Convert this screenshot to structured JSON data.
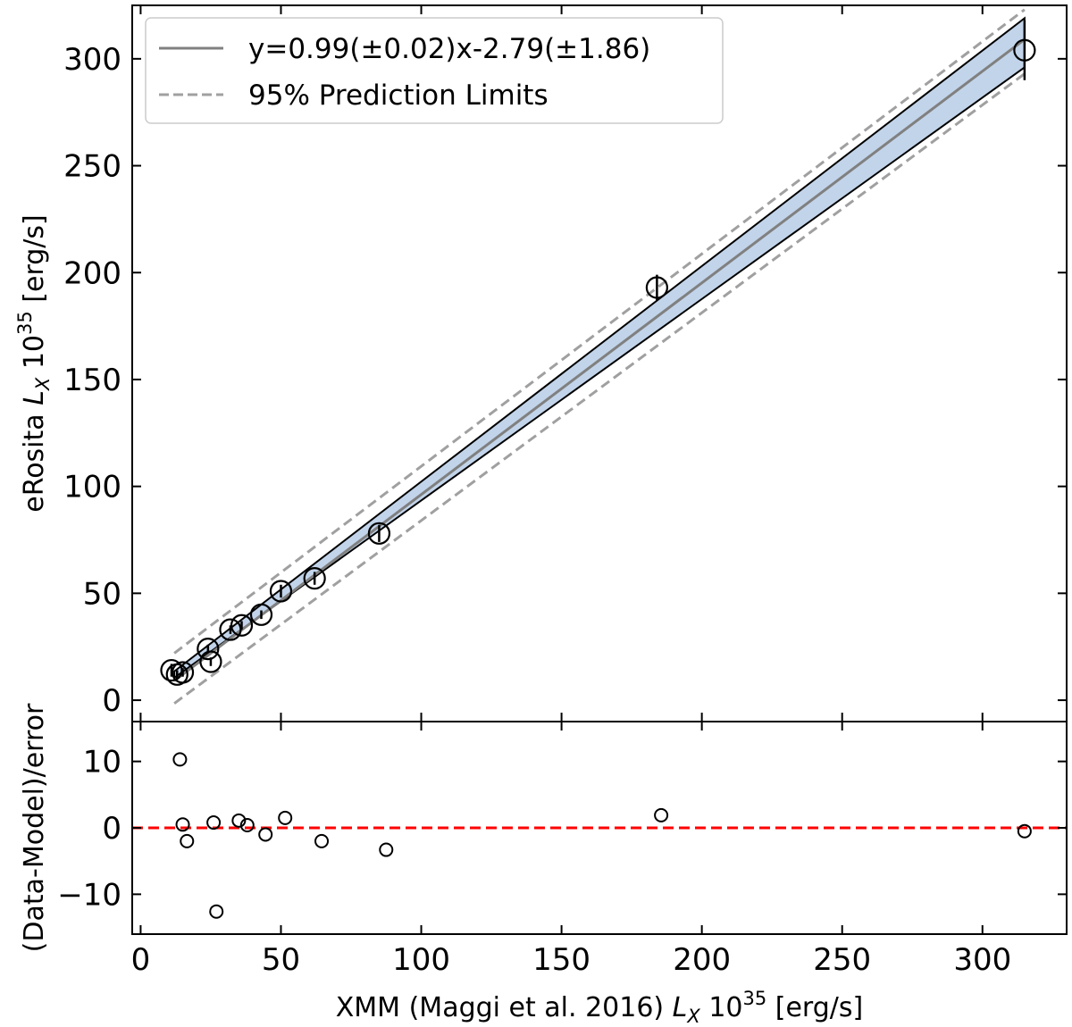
{
  "chart_data": [
    {
      "type": "scatter",
      "panel": "main",
      "ylabel": {
        "prefix": "eRosita ",
        "symbol": "L",
        "subscript": "X",
        "base": " 10",
        "exponent": "35",
        "unit": " [erg/s]"
      },
      "xlim": [
        -3,
        330
      ],
      "ylim": [
        -10,
        325
      ],
      "x_ticks": [
        0,
        50,
        100,
        150,
        200,
        250,
        300
      ],
      "y_ticks": [
        0,
        50,
        100,
        150,
        200,
        250,
        300
      ],
      "y_tick_labels": [
        "0",
        "50",
        "100",
        "150",
        "200",
        "250",
        "300"
      ],
      "grid": false,
      "legend": {
        "placement": "top-left",
        "entries": [
          {
            "label": "y=0.99(±0.02)x-2.79(±1.86)",
            "style": "solid",
            "color": "#808080"
          },
          {
            "label": "95% Prediction Limits",
            "style": "dashed",
            "color": "#a0a0a0"
          }
        ]
      },
      "fit": {
        "slope": 0.99,
        "intercept": -2.79,
        "x_range": [
          12,
          315
        ],
        "color": "#808080"
      },
      "confidence_band": {
        "x": [
          12,
          315
        ],
        "lower": [
          10.5,
          296
        ],
        "upper": [
          13.5,
          319
        ],
        "fill": "#c2d4ea",
        "edge": "#000000"
      },
      "prediction_limits": {
        "x": [
          12,
          315
        ],
        "lower": [
          -1.5,
          293
        ],
        "upper": [
          22,
          323
        ],
        "color": "#a0a0a0"
      },
      "series": [
        {
          "points": [
            {
              "x": 11,
              "y": 14,
              "err": 3
            },
            {
              "x": 13,
              "y": 12,
              "err": 2
            },
            {
              "x": 15,
              "y": 13,
              "err": 2
            },
            {
              "x": 24,
              "y": 24,
              "err": 2
            },
            {
              "x": 25,
              "y": 18,
              "err": 2
            },
            {
              "x": 32,
              "y": 33,
              "err": 2
            },
            {
              "x": 36,
              "y": 35,
              "err": 2
            },
            {
              "x": 43,
              "y": 40,
              "err": 2
            },
            {
              "x": 50,
              "y": 51,
              "err": 3
            },
            {
              "x": 62,
              "y": 57,
              "err": 3
            },
            {
              "x": 85,
              "y": 78,
              "err": 4
            },
            {
              "x": 184,
              "y": 193,
              "err": 6
            },
            {
              "x": 315,
              "y": 304,
              "err": 14
            }
          ]
        }
      ]
    },
    {
      "type": "scatter",
      "panel": "residuals",
      "xlabel": {
        "prefix": "XMM (Maggi et al. 2016) ",
        "symbol": "L",
        "subscript": "X",
        "base": " 10",
        "exponent": "35",
        "unit": " [erg/s]"
      },
      "ylabel": "(Data-Model)/error",
      "xlim": [
        -3,
        330
      ],
      "ylim": [
        -16,
        16
      ],
      "x_ticks": [
        0,
        50,
        100,
        150,
        200,
        250,
        300
      ],
      "x_tick_labels": [
        "0",
        "50",
        "100",
        "150",
        "200",
        "250",
        "300"
      ],
      "y_ticks": [
        10,
        0,
        -10
      ],
      "y_tick_labels": [
        "10",
        "0",
        "−10"
      ],
      "zero_line": {
        "y": 0,
        "color": "#ff0000",
        "style": "dashed"
      },
      "series": [
        {
          "points": [
            {
              "x": 14,
              "y": 10.3
            },
            {
              "x": 15,
              "y": 0.5
            },
            {
              "x": 16.5,
              "y": -2
            },
            {
              "x": 26,
              "y": 0.8
            },
            {
              "x": 27,
              "y": -12.6
            },
            {
              "x": 35,
              "y": 1.1
            },
            {
              "x": 38,
              "y": 0.4
            },
            {
              "x": 44.5,
              "y": -1
            },
            {
              "x": 51.5,
              "y": 1.5
            },
            {
              "x": 64.5,
              "y": -2
            },
            {
              "x": 87.5,
              "y": -3.3
            },
            {
              "x": 185.5,
              "y": 1.9
            },
            {
              "x": 315,
              "y": -0.5
            }
          ]
        }
      ]
    }
  ]
}
